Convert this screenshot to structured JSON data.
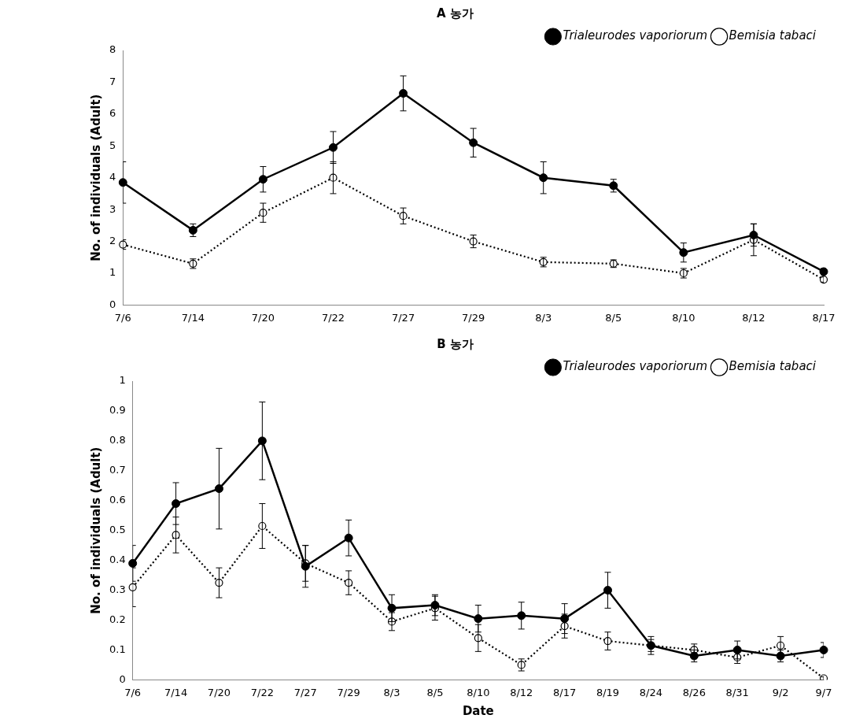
{
  "chart_data": [
    {
      "type": "line",
      "title": "A 농가",
      "y_label": "No. of individuals (Adult)",
      "categories": [
        "7/6",
        "7/14",
        "7/20",
        "7/22",
        "7/27",
        "7/29",
        "8/3",
        "8/5",
        "8/10",
        "8/12",
        "8/17"
      ],
      "series": [
        {
          "name": "Trialeurodes vaporiorum",
          "color": "#000000",
          "marker": "circle",
          "line_style": "solid",
          "values": [
            3.85,
            2.35,
            3.95,
            4.95,
            6.65,
            5.1,
            4.0,
            3.75,
            1.65,
            2.2,
            1.05
          ],
          "errors": [
            0.65,
            0.2,
            0.4,
            0.5,
            0.55,
            0.45,
            0.5,
            0.2,
            0.3,
            0.35,
            0.1
          ]
        },
        {
          "name": "Bemisia tabaci",
          "color": "#000000",
          "marker": "circle_open",
          "line_style": "dotted",
          "values": [
            1.9,
            1.3,
            2.9,
            4.0,
            2.8,
            2.0,
            1.35,
            1.3,
            1.0,
            2.05,
            0.8
          ],
          "errors": [
            0.15,
            0.15,
            0.3,
            0.5,
            0.25,
            0.2,
            0.15,
            0.12,
            0.15,
            0.5,
            0.08
          ]
        }
      ],
      "ylim": [
        0,
        8
      ],
      "yticks": [
        0,
        1,
        2,
        3,
        4,
        5,
        6,
        7,
        8
      ],
      "grid": false,
      "legend": "top right"
    },
    {
      "type": "line",
      "title": "B 농가",
      "y_label": "No. of individuals (Adult)",
      "x_label": "Date",
      "categories": [
        "7/6",
        "7/14",
        "7/20",
        "7/22",
        "7/27",
        "7/29",
        "8/3",
        "8/5",
        "8/10",
        "8/12",
        "8/17",
        "8/19",
        "8/24",
        "8/26",
        "8/31",
        "9/2",
        "9/7"
      ],
      "series": [
        {
          "name": "Trialeurodes vaporiorum",
          "color": "#000000",
          "marker": "circle",
          "line_style": "solid",
          "values": [
            0.39,
            0.59,
            0.64,
            0.8,
            0.38,
            0.475,
            0.24,
            0.25,
            0.205,
            0.215,
            0.205,
            0.3,
            0.115,
            0.08,
            0.1,
            0.08,
            0.1
          ],
          "errors": [
            0.06,
            0.07,
            0.135,
            0.13,
            0.07,
            0.06,
            0.045,
            0.035,
            0.045,
            0.045,
            0.05,
            0.06,
            0.03,
            0.02,
            0.03,
            0.02,
            0.025
          ]
        },
        {
          "name": "Bemisia tabaci",
          "color": "#000000",
          "marker": "circle_open",
          "line_style": "dotted",
          "values": [
            0.31,
            0.485,
            0.325,
            0.515,
            0.39,
            0.325,
            0.195,
            0.24,
            0.14,
            0.05,
            0.18,
            0.13,
            0.115,
            0.1,
            0.075,
            0.115,
            0.005
          ],
          "errors": [
            0.065,
            0.06,
            0.05,
            0.075,
            0.06,
            0.04,
            0.03,
            0.04,
            0.045,
            0.02,
            0.04,
            0.03,
            0.02,
            0.02,
            0.02,
            0.03,
            0.005
          ]
        }
      ],
      "ylim": [
        0,
        1
      ],
      "yticks": [
        0,
        0.1,
        0.2,
        0.3,
        0.4,
        0.5,
        0.6,
        0.7,
        0.8,
        0.9,
        1
      ],
      "grid": false,
      "legend": "top right"
    }
  ]
}
